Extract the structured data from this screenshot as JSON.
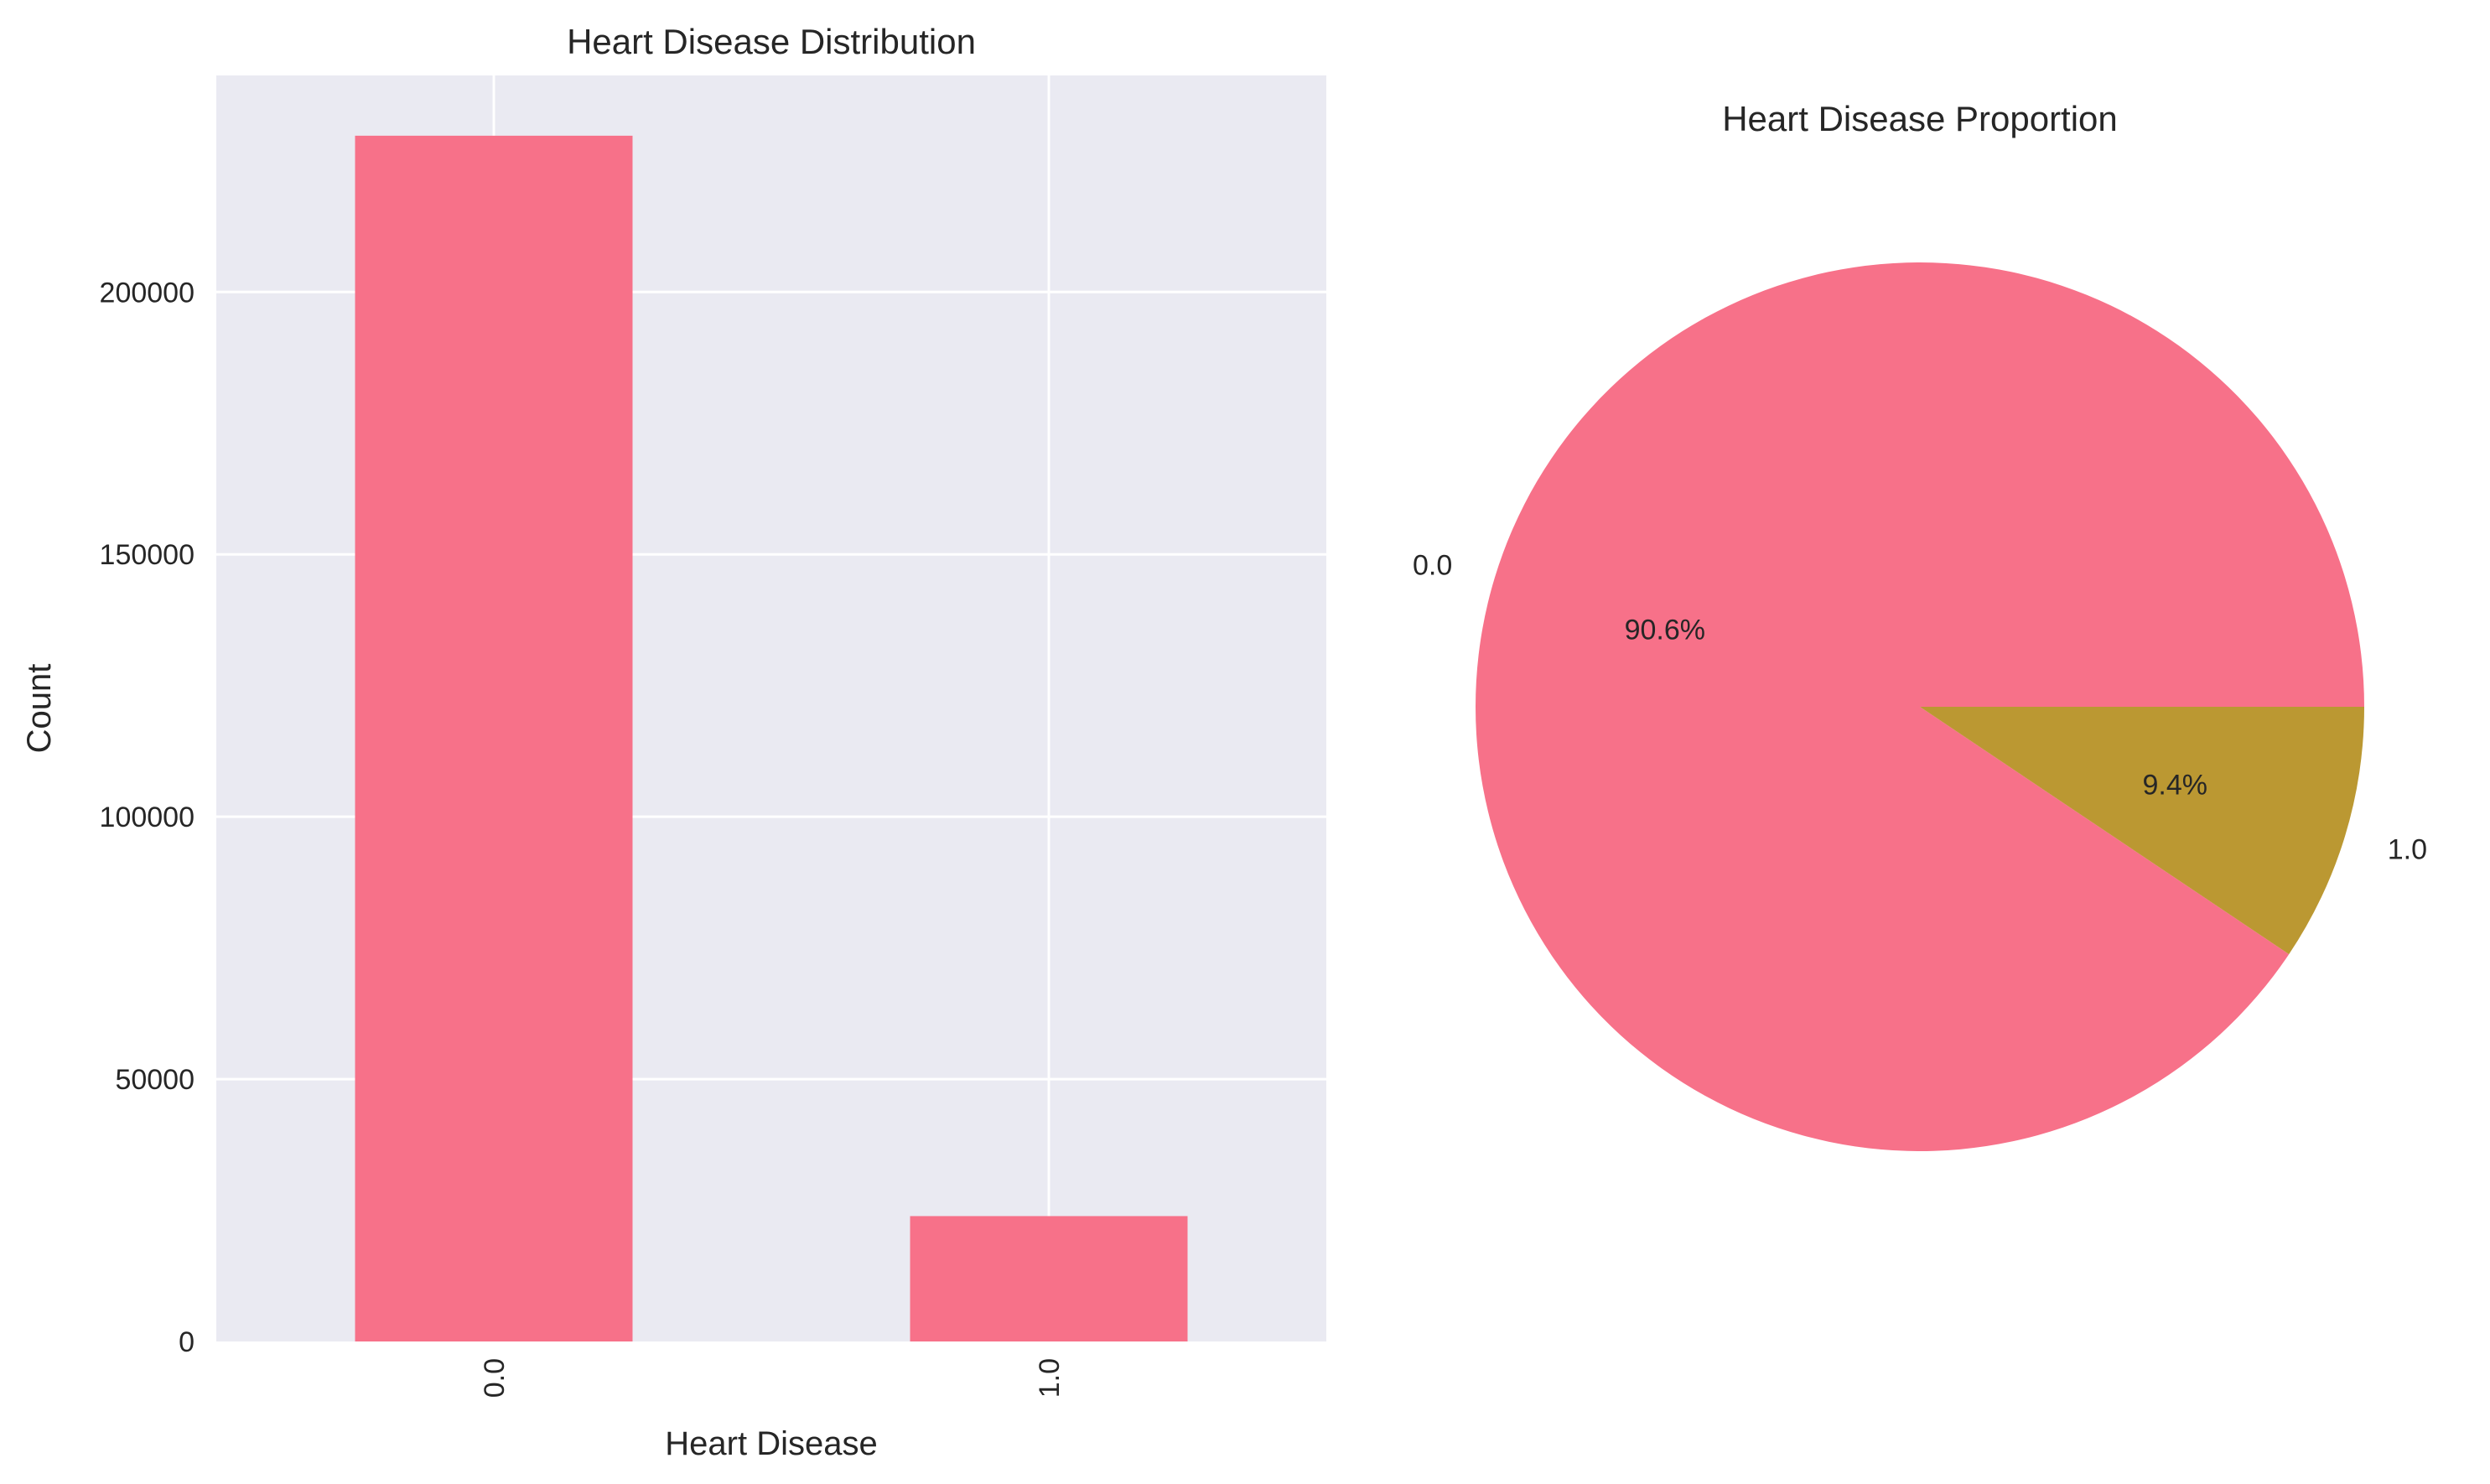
{
  "chart_data": [
    {
      "type": "bar",
      "title": "Heart Disease Distribution",
      "xlabel": "Heart Disease",
      "ylabel": "Count",
      "categories": [
        "0.0",
        "1.0"
      ],
      "values": [
        229787,
        23893
      ],
      "ylim": [
        0,
        241270
      ],
      "yticks": [
        0,
        50000,
        100000,
        150000,
        200000
      ],
      "ytick_labels": [
        "0",
        "50000",
        "100000",
        "150000",
        "200000"
      ],
      "xtick_rotation": "vertical",
      "grid": true,
      "bar_color": "#f77189",
      "background": "#eaeaf2"
    },
    {
      "type": "pie",
      "title": "Heart Disease Proportion",
      "labels": [
        "0.0",
        "1.0"
      ],
      "values": [
        90.6,
        9.4
      ],
      "pct_labels": [
        "90.6%",
        "9.4%"
      ],
      "colors": [
        "#f77189",
        "#bb9832"
      ]
    }
  ]
}
